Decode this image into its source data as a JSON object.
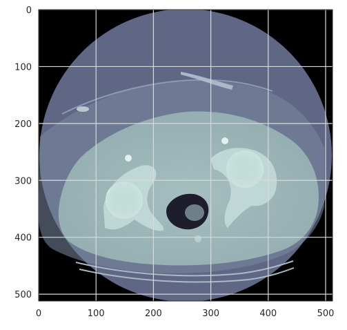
{
  "chart_data": {
    "type": "heatmap",
    "title": "",
    "xlabel": "",
    "ylabel": "",
    "xlim": [
      0,
      512
    ],
    "ylim": [
      512,
      0
    ],
    "x_ticks": [
      0,
      100,
      200,
      300,
      400,
      500
    ],
    "y_ticks": [
      0,
      100,
      200,
      300,
      400,
      500
    ],
    "x_tick_labels": [
      "0",
      "100",
      "200",
      "300",
      "400",
      "500"
    ],
    "y_tick_labels": [
      "0",
      "100",
      "200",
      "300",
      "400",
      "500"
    ],
    "grid": true,
    "colormap": "bone",
    "content": "axial CT slice of the pelvis showing hip joints and rectum",
    "colors": {
      "background": "#000000",
      "fov_disc": "#5f6785",
      "fat": "#7a8aa0",
      "soft_tissue": "#9ab5b6",
      "bone": "#c7e0dc",
      "air": "#1d1d2b",
      "grid": "#d9d9d9",
      "axes_frame": "#2b2b2b"
    }
  }
}
